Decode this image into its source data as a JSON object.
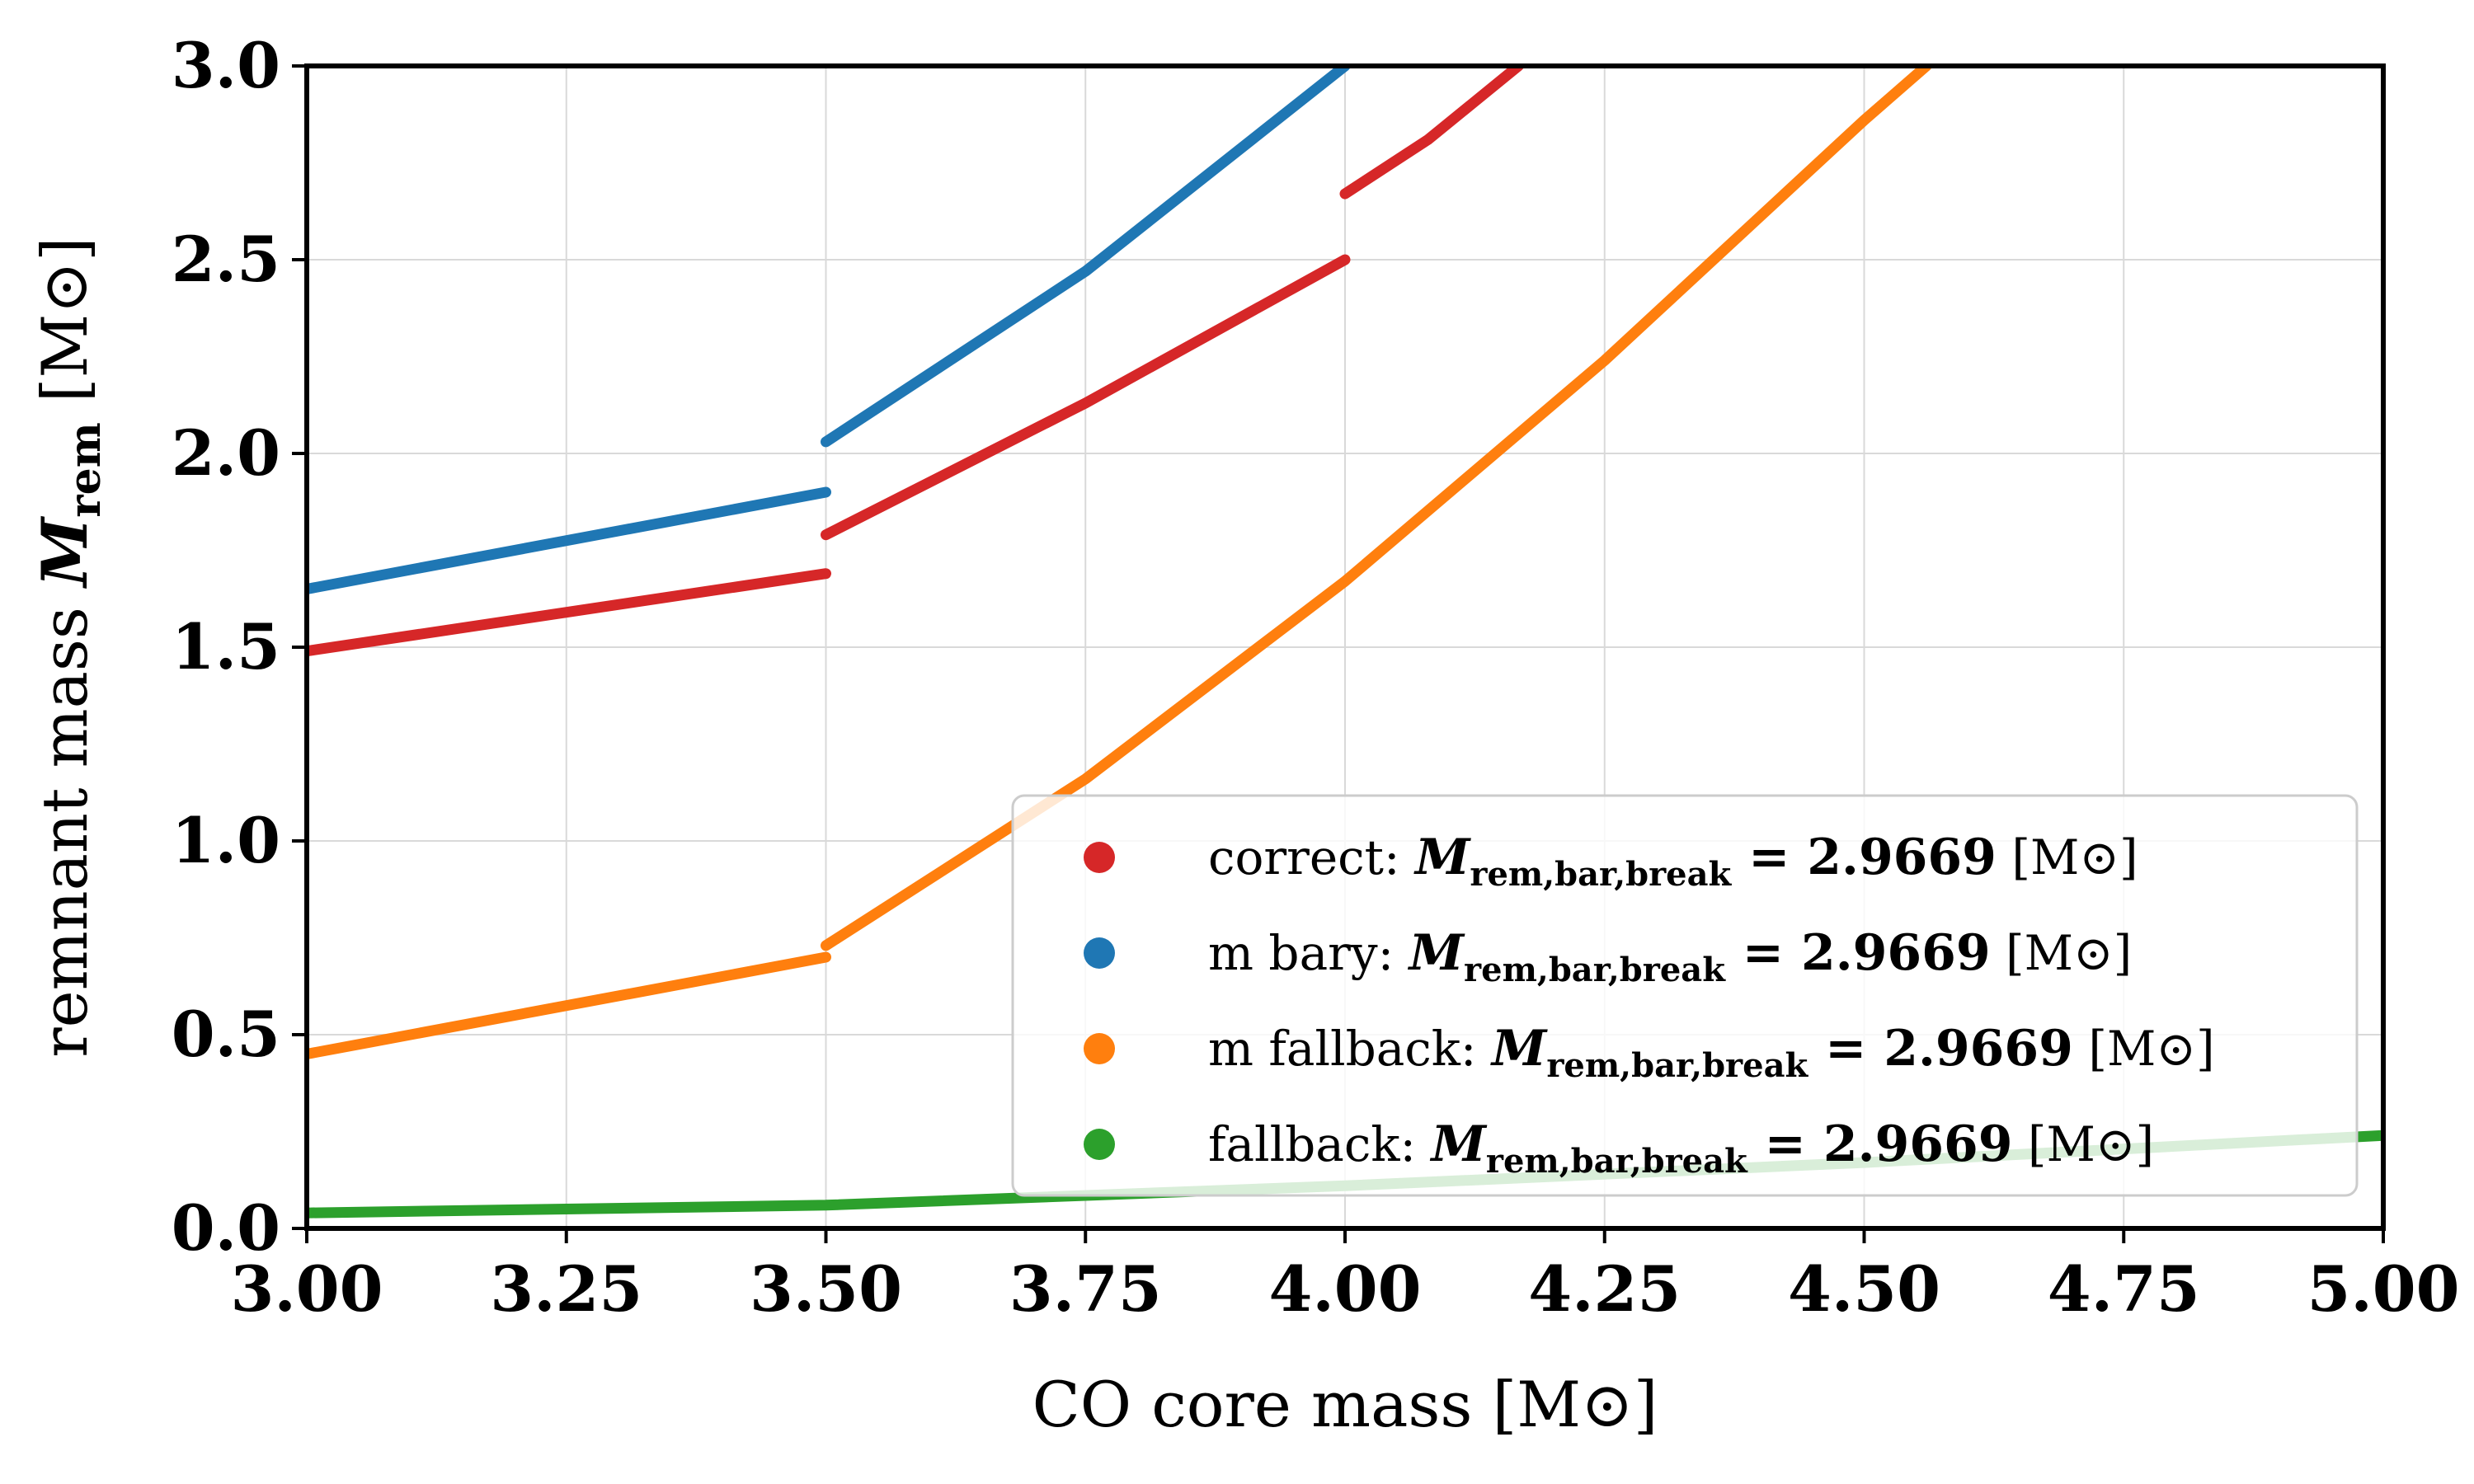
{
  "chart_data": {
    "type": "line",
    "xlabel": "CO core mass [M⊙]",
    "ylabel_prefix": "remnant mass ",
    "ylabel_symbol": "M",
    "ylabel_sub": "rem",
    "ylabel_unit": " [M⊙]",
    "xlim": [
      3.0,
      5.0
    ],
    "ylim": [
      0.0,
      3.0
    ],
    "x_ticks": [
      3.0,
      3.25,
      3.5,
      3.75,
      4.0,
      4.25,
      4.5,
      4.75,
      5.0
    ],
    "x_tick_labels": [
      "3.00",
      "3.25",
      "3.50",
      "3.75",
      "4.00",
      "4.25",
      "4.50",
      "4.75",
      "5.00"
    ],
    "y_ticks": [
      0.0,
      0.5,
      1.0,
      1.5,
      2.0,
      2.5,
      3.0
    ],
    "y_tick_labels": [
      "0.0",
      "0.5",
      "1.0",
      "1.5",
      "2.0",
      "2.5",
      "3.0"
    ],
    "grid": true,
    "legend_position": "lower-right",
    "series": [
      {
        "name": "correct",
        "color": "#d62728",
        "segments": [
          [
            [
              3.0,
              1.49
            ],
            [
              3.5,
              1.69
            ]
          ],
          [
            [
              3.5,
              1.79
            ],
            [
              3.75,
              2.13
            ],
            [
              4.0,
              2.5
            ]
          ],
          [
            [
              4.0,
              2.67
            ],
            [
              4.08,
              2.81
            ],
            [
              4.167,
              3.0
            ]
          ]
        ]
      },
      {
        "name": "m bary",
        "color": "#1f77b4",
        "segments": [
          [
            [
              3.0,
              1.65
            ],
            [
              3.5,
              1.9
            ]
          ],
          [
            [
              3.5,
              2.03
            ],
            [
              3.75,
              2.47
            ],
            [
              4.0,
              3.0
            ]
          ]
        ]
      },
      {
        "name": "m fallback",
        "color": "#ff7f0e",
        "segments": [
          [
            [
              3.0,
              0.45
            ],
            [
              3.5,
              0.7
            ]
          ],
          [
            [
              3.5,
              0.73
            ],
            [
              3.75,
              1.16
            ],
            [
              4.0,
              1.67
            ],
            [
              4.25,
              2.24
            ],
            [
              4.5,
              2.86
            ],
            [
              4.56,
              3.0
            ]
          ]
        ]
      },
      {
        "name": "fallback",
        "color": "#2ca02c",
        "segments": [
          [
            [
              3.0,
              0.04
            ],
            [
              3.5,
              0.06
            ],
            [
              4.0,
              0.11
            ],
            [
              4.5,
              0.17
            ],
            [
              5.0,
              0.24
            ]
          ]
        ]
      }
    ],
    "legend": [
      {
        "prefix": "correct: ",
        "symbol": "M",
        "sub": "rem,bar,break",
        "value": " = 2.9669",
        "unit": " [M⊙]",
        "color": "#d62728"
      },
      {
        "prefix": "m bary: ",
        "symbol": "M",
        "sub": "rem,bar,break",
        "value": " = 2.9669",
        "unit": " [M⊙]",
        "color": "#1f77b4"
      },
      {
        "prefix": "m fallback: ",
        "symbol": "M",
        "sub": "rem,bar,break",
        "value": " = 2.9669",
        "unit": " [M⊙]",
        "color": "#ff7f0e"
      },
      {
        "prefix": "fallback: ",
        "symbol": "M",
        "sub": "rem,bar,break",
        "value": " = 2.9669",
        "unit": " [M⊙]",
        "color": "#2ca02c"
      }
    ]
  }
}
